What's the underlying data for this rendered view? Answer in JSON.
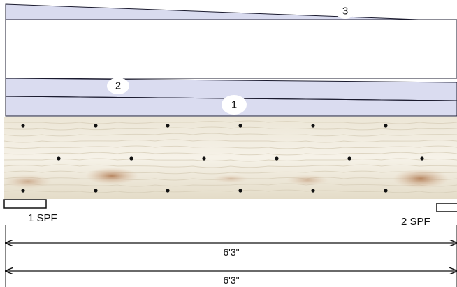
{
  "plies": [
    {
      "id": "1",
      "label": "1"
    },
    {
      "id": "2",
      "label": "2"
    },
    {
      "id": "3",
      "label": "3"
    }
  ],
  "supports": [
    {
      "label": "1 SPF"
    },
    {
      "label": "2 SPF"
    }
  ],
  "dimensions": [
    {
      "label": "6'3\""
    },
    {
      "label": "6'3\""
    }
  ],
  "colors": {
    "ply_fill": "#dadcf0",
    "line": "#1a1a2e",
    "wood": "#e8e2d2",
    "knot": "#b98a6a",
    "fastener": "#111111"
  },
  "fastener_pattern": "3 staggered rows",
  "icons": [
    "fastener-dot-icon",
    "arrow-left-icon",
    "arrow-right-icon"
  ]
}
